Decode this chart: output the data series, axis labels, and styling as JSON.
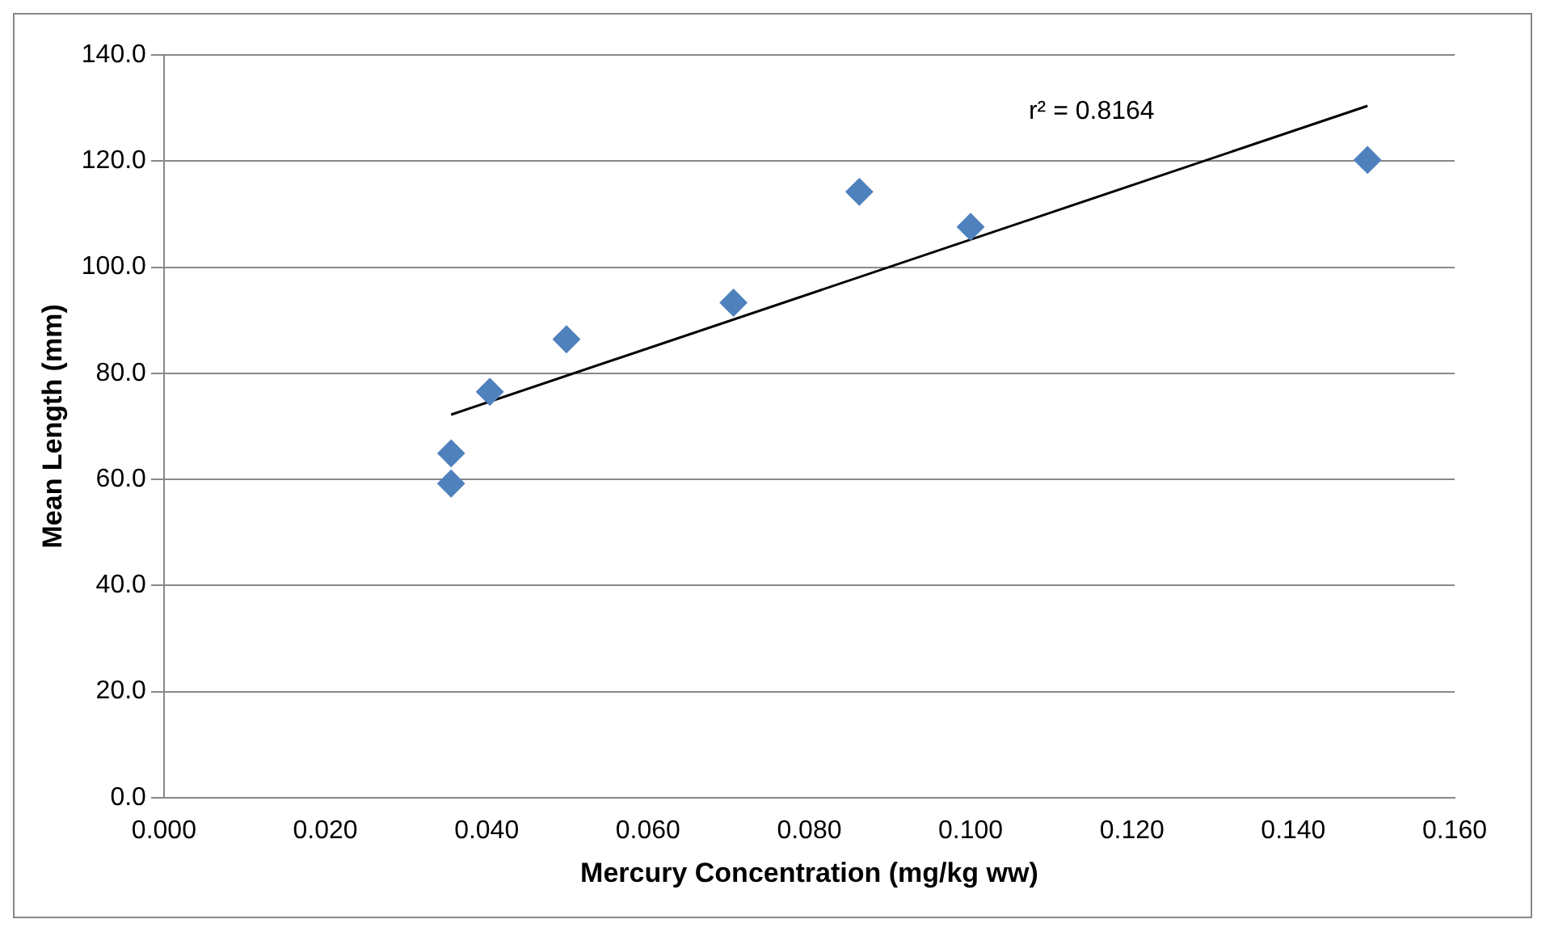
{
  "chart_data": {
    "type": "scatter",
    "xlabel": "Mercury Concentration (mg/kg ww)",
    "ylabel": "Mean Length (mm)",
    "annotations": [
      "r² = 0.8164"
    ],
    "series": [
      {
        "type": "scatter",
        "color": "#4f81bd",
        "marker": "diamond",
        "x": [
          0.0356,
          0.0356,
          0.0404,
          0.0499,
          0.0706,
          0.0862,
          0.1,
          0.1492
        ],
        "values": [
          59.2,
          64.9,
          76.5,
          86.4,
          93.3,
          114.2,
          107.6,
          120.2
        ]
      },
      {
        "type": "line",
        "color": "#000000",
        "marker": "none",
        "line_style": "solid",
        "x": [
          0.0356,
          0.1492
        ],
        "values": [
          72.2,
          130.4
        ]
      }
    ],
    "xlim": [
      0,
      0.16
    ],
    "xticks": [
      {
        "value": 0,
        "label": "0.000"
      },
      {
        "value": 0.02,
        "label": "0.020"
      },
      {
        "value": 0.04,
        "label": "0.040"
      },
      {
        "value": 0.06,
        "label": "0.060"
      },
      {
        "value": 0.08,
        "label": "0.080"
      },
      {
        "value": 0.1,
        "label": "0.100"
      },
      {
        "value": 0.12,
        "label": "0.120"
      },
      {
        "value": 0.14,
        "label": "0.140"
      },
      {
        "value": 0.16,
        "label": "0.160"
      }
    ],
    "ylim": [
      0,
      140
    ],
    "yticks": [
      {
        "value": 0,
        "label": "0.0"
      },
      {
        "value": 20,
        "label": "20.0"
      },
      {
        "value": 40,
        "label": "40.0"
      },
      {
        "value": 60,
        "label": "60.0"
      },
      {
        "value": 80,
        "label": "80.0"
      },
      {
        "value": 100,
        "label": "100.0"
      },
      {
        "value": 120,
        "label": "120.0"
      },
      {
        "value": 140,
        "label": "140.0"
      }
    ],
    "grid": "y",
    "legend": false
  }
}
